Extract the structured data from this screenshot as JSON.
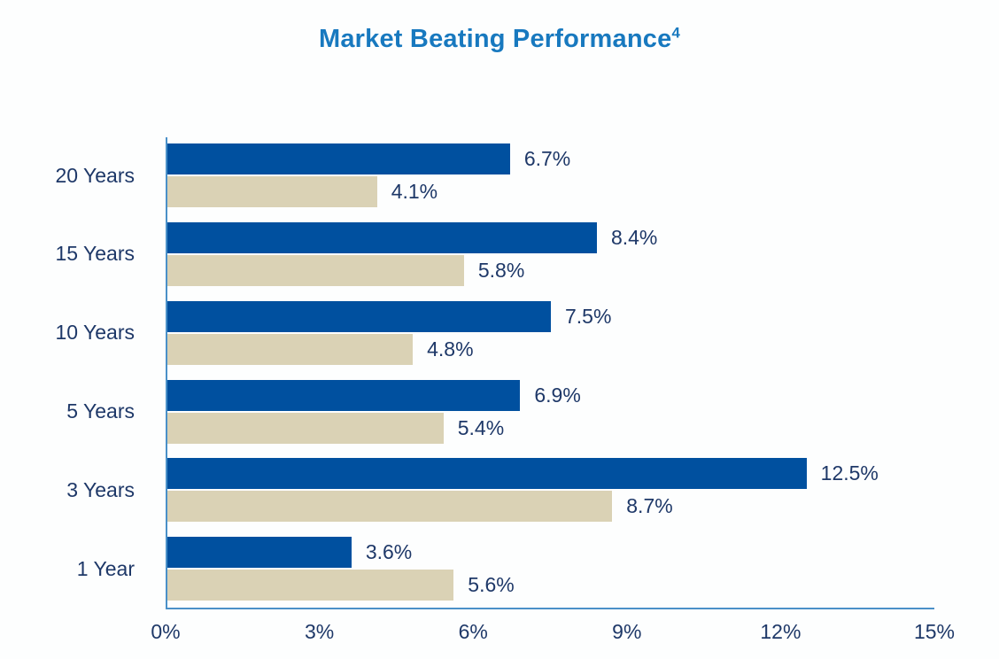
{
  "title": {
    "main": "Market Beating Performance",
    "superscript": "4"
  },
  "colors": {
    "title": "#1879BF",
    "axis_line": "#4A90C8",
    "label_text": "#1E3868",
    "series_primary": "#00509F",
    "series_secondary": "#DAD2B5",
    "background": "#FDFEFE"
  },
  "chart_data": {
    "type": "bar",
    "orientation": "horizontal",
    "title": "Market Beating Performance⁴",
    "categories": [
      "20 Years",
      "15 Years",
      "10 Years",
      "5 Years",
      "3 Years",
      "1 Year"
    ],
    "series": [
      {
        "name": "primary-blue",
        "color": "#00509F",
        "values": [
          6.7,
          8.4,
          7.5,
          6.9,
          12.5,
          3.6
        ],
        "labels": [
          "6.7%",
          "8.4%",
          "7.5%",
          "6.9%",
          "12.5%",
          "3.6%"
        ]
      },
      {
        "name": "secondary-tan",
        "color": "#DAD2B5",
        "values": [
          4.1,
          5.8,
          4.8,
          5.4,
          8.7,
          5.6
        ],
        "labels": [
          "4.1%",
          "5.8%",
          "4.8%",
          "5.4%",
          "8.7%",
          "5.6%"
        ]
      }
    ],
    "xlabel": "",
    "ylabel": "",
    "xlim": [
      0,
      15
    ],
    "x_tick_labels": [
      "0%",
      "3%",
      "6%",
      "9%",
      "12%",
      "15%"
    ],
    "grid": false,
    "legend_position": "none"
  }
}
